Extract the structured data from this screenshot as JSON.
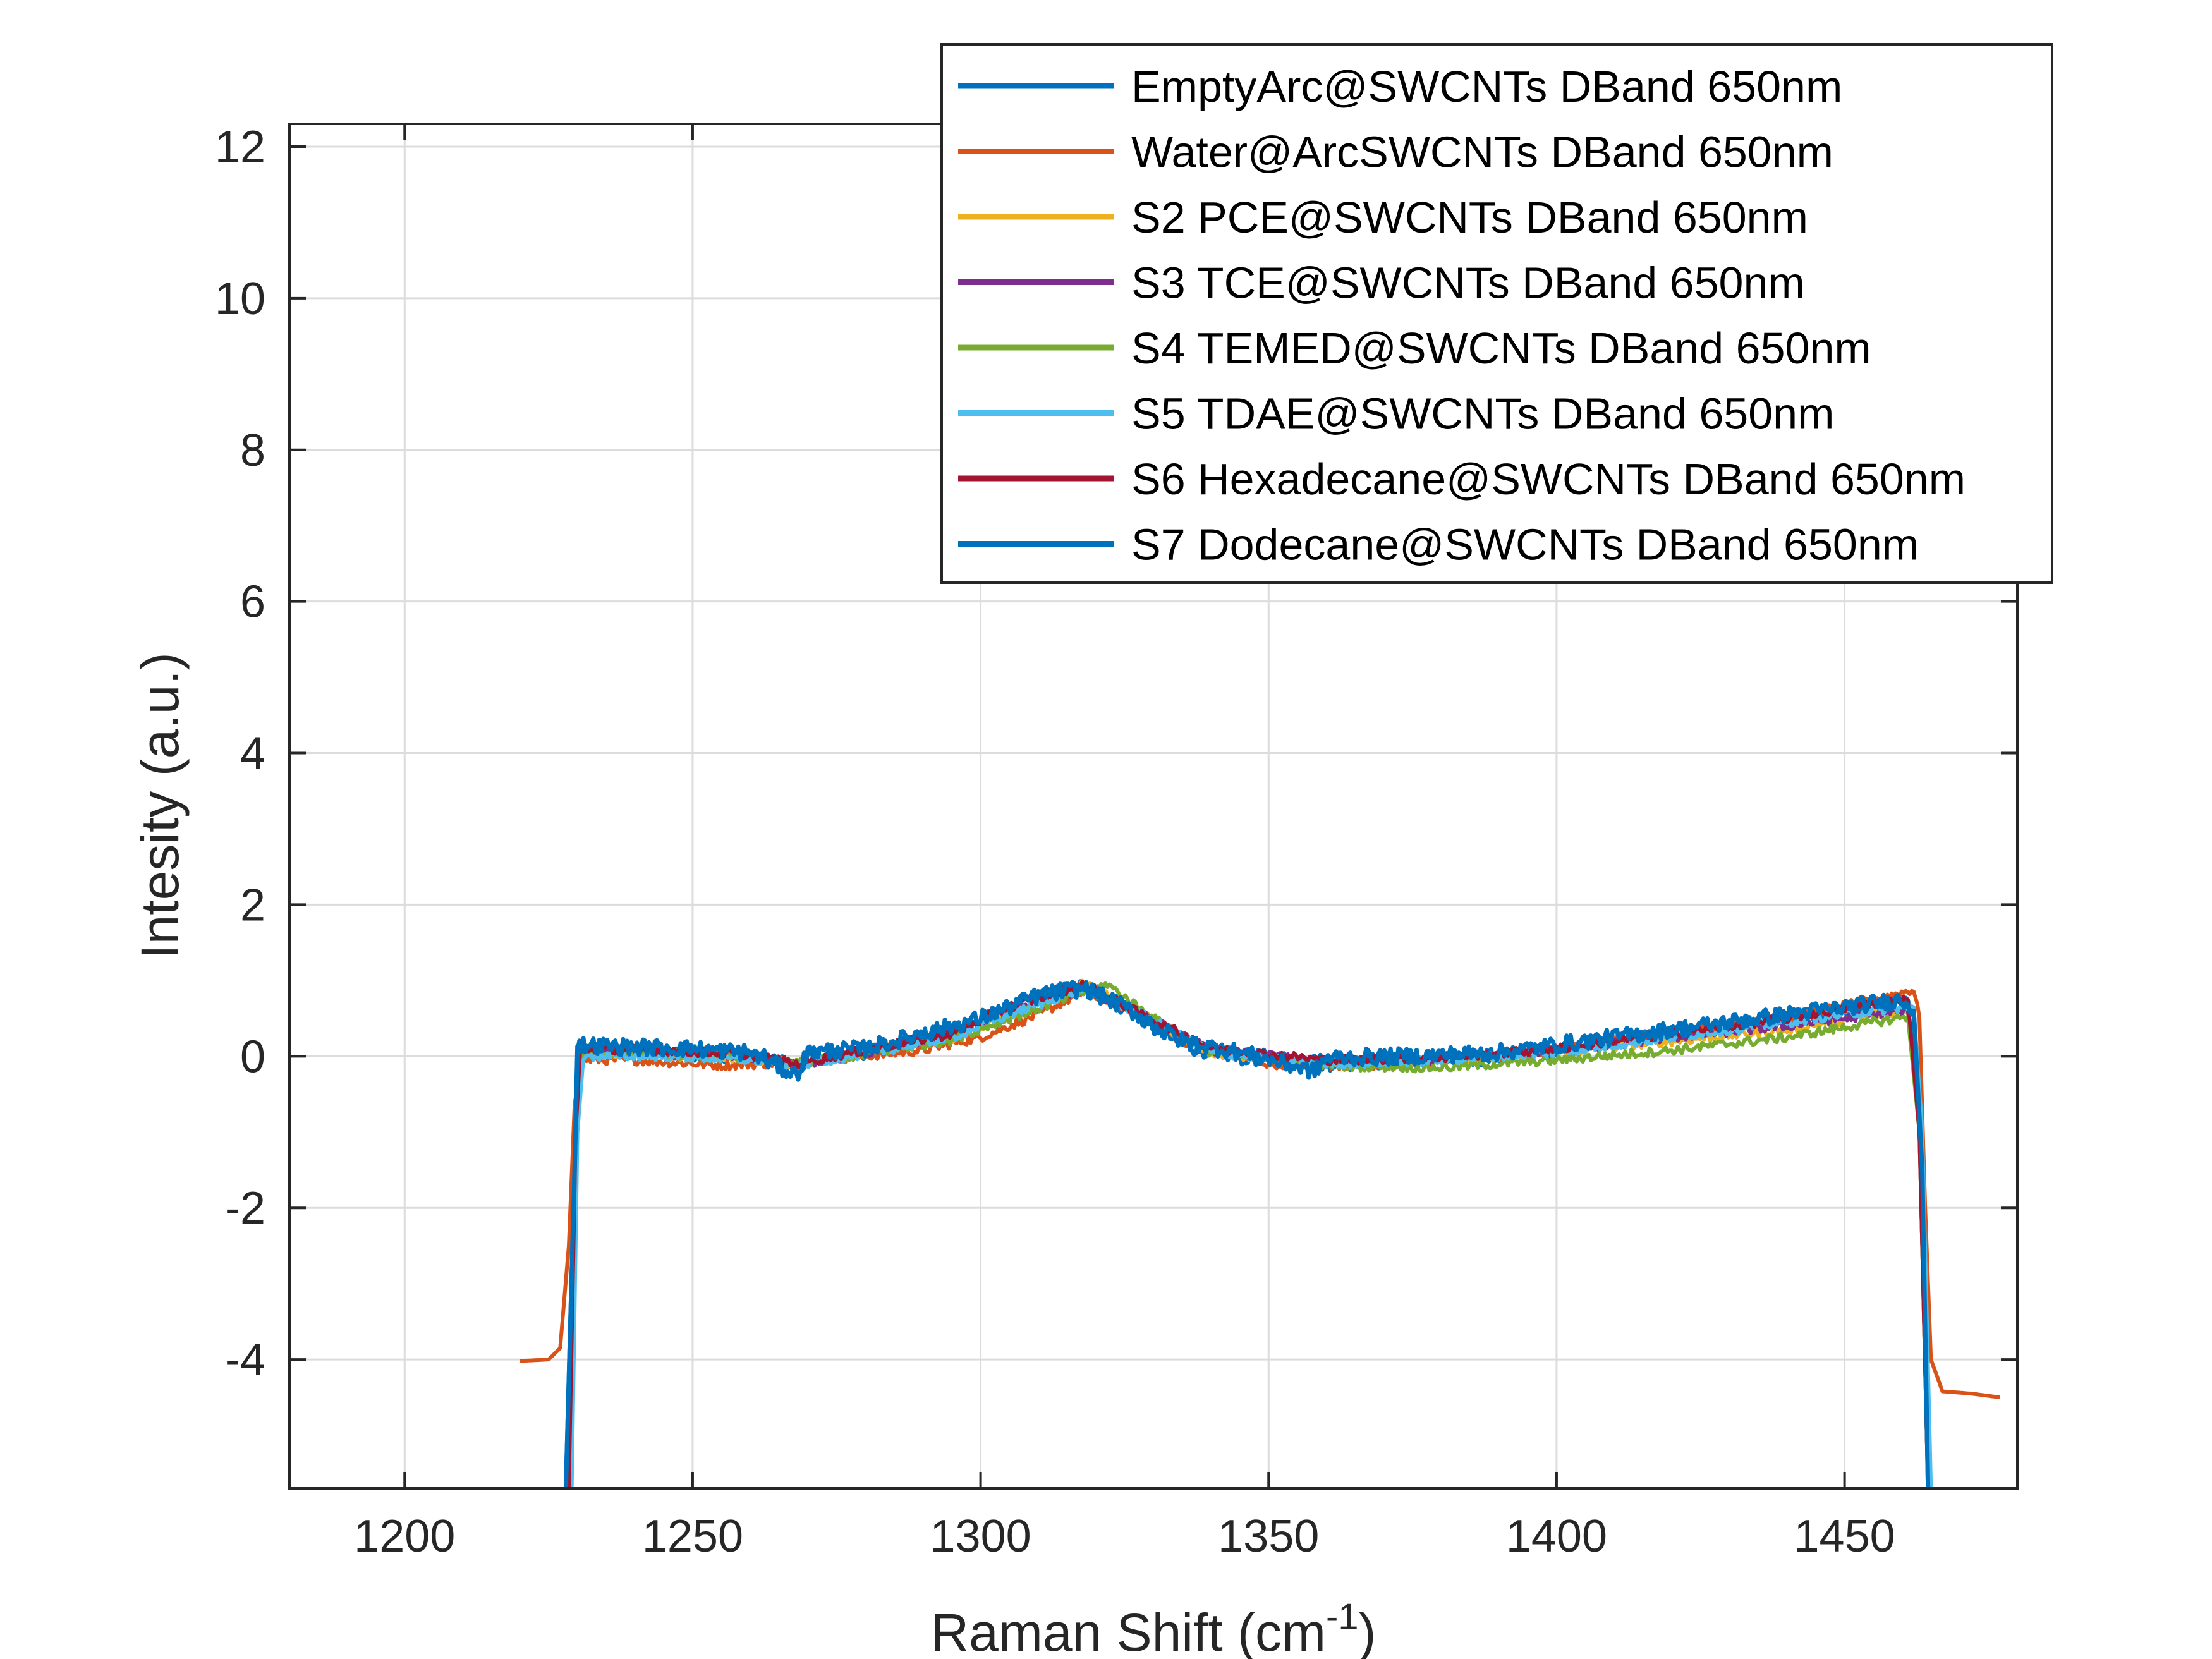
{
  "chart_data": {
    "type": "line",
    "title": "",
    "xlabel": "Raman Shift (cm",
    "xlabel_sup": "-1",
    "xlabel_suffix": ")",
    "ylabel": "Intesity (a.u.)",
    "xlim": [
      1180,
      1480
    ],
    "ylim": [
      -5.7,
      12.3
    ],
    "xticks": [
      1200,
      1250,
      1300,
      1350,
      1400,
      1450
    ],
    "xtick_labels": [
      "1200",
      "1250",
      "1300",
      "1350",
      "1400",
      "1450"
    ],
    "yticks": [
      -4,
      -2,
      0,
      2,
      4,
      6,
      8,
      10,
      12
    ],
    "ytick_labels": [
      "-4",
      "-2",
      "0",
      "2",
      "4",
      "6",
      "8",
      "10",
      "12"
    ],
    "grid": true,
    "legend_position": "top-right",
    "series": [
      {
        "name": "EmptyArc@SWCNTs DBand 650nm",
        "color": "#0072BD",
        "x": [
          1228,
          1229.5,
          1230,
          1240,
          1250,
          1260,
          1268,
          1270,
          1280,
          1290,
          1300,
          1310,
          1318,
          1325,
          1335,
          1345,
          1360,
          1375,
          1390,
          1400,
          1415,
          1430,
          1445,
          1455,
          1460,
          1462,
          1463.5,
          1464.5
        ],
        "y": [
          -5.7,
          -1.5,
          0.1,
          0.08,
          0.05,
          0.02,
          -0.15,
          0.0,
          0.05,
          0.25,
          0.45,
          0.8,
          0.92,
          0.65,
          0.15,
          0.0,
          -0.08,
          -0.05,
          0.0,
          0.1,
          0.25,
          0.4,
          0.55,
          0.65,
          0.7,
          0.6,
          -1.5,
          -5.7
        ]
      },
      {
        "name": "Water@ArcSWCNTs DBand 650nm",
        "color": "#D95319",
        "x": [
          1220,
          1225,
          1227,
          1228.5,
          1229.5,
          1230.5,
          1240,
          1255,
          1268,
          1280,
          1290,
          1300,
          1310,
          1318,
          1325,
          1335,
          1350,
          1370,
          1390,
          1400,
          1420,
          1440,
          1455,
          1462,
          1463,
          1464,
          1465,
          1467,
          1472,
          1477
        ],
        "y": [
          -4.02,
          -4.0,
          -3.85,
          -2.5,
          -0.6,
          -0.05,
          -0.05,
          -0.12,
          -0.08,
          0.0,
          0.08,
          0.25,
          0.55,
          0.85,
          0.65,
          0.2,
          -0.1,
          -0.12,
          0.0,
          0.1,
          0.3,
          0.5,
          0.75,
          0.88,
          0.5,
          -2.0,
          -4.0,
          -4.42,
          -4.45,
          -4.5
        ]
      },
      {
        "name": "S2 PCE@SWCNTs DBand 650nm",
        "color": "#EDB120",
        "x": [
          1228.5,
          1229.7,
          1230.5,
          1245,
          1260,
          1268,
          1280,
          1295,
          1305,
          1318,
          1328,
          1340,
          1360,
          1380,
          1400,
          1420,
          1440,
          1455,
          1461,
          1463,
          1464.5
        ],
        "y": [
          -5.7,
          -1.0,
          0.05,
          0.02,
          -0.03,
          -0.1,
          0.05,
          0.25,
          0.55,
          0.95,
          0.55,
          0.05,
          -0.1,
          -0.05,
          0.05,
          0.2,
          0.35,
          0.55,
          0.6,
          -1.0,
          -5.7
        ]
      },
      {
        "name": "S3 TCE@SWCNTs DBand 650nm",
        "color": "#7E2F8E",
        "x": [
          1228.5,
          1229.7,
          1230.5,
          1245,
          1260,
          1268,
          1280,
          1295,
          1305,
          1318,
          1328,
          1340,
          1360,
          1380,
          1400,
          1420,
          1440,
          1455,
          1461,
          1463,
          1464.5
        ],
        "y": [
          -5.7,
          -1.0,
          0.08,
          0.05,
          0.0,
          -0.12,
          0.05,
          0.28,
          0.6,
          0.9,
          0.55,
          0.08,
          -0.08,
          -0.05,
          0.08,
          0.25,
          0.4,
          0.55,
          0.6,
          -1.0,
          -5.7
        ]
      },
      {
        "name": "S4 TEMED@SWCNTs DBand 650nm",
        "color": "#77AC30",
        "x": [
          1228.5,
          1229.7,
          1230.5,
          1245,
          1260,
          1268,
          1280,
          1295,
          1305,
          1322,
          1330,
          1340,
          1360,
          1380,
          1400,
          1420,
          1440,
          1455,
          1461,
          1463,
          1464.5
        ],
        "y": [
          -5.7,
          -1.0,
          0.05,
          0.03,
          -0.02,
          -0.1,
          0.02,
          0.22,
          0.5,
          0.95,
          0.5,
          0.05,
          -0.12,
          -0.15,
          -0.05,
          0.08,
          0.25,
          0.45,
          0.52,
          -1.0,
          -5.7
        ]
      },
      {
        "name": "S5 TDAE@SWCNTs DBand 650nm",
        "color": "#4DBEEE",
        "x": [
          1229,
          1230,
          1231,
          1245,
          1260,
          1268,
          1280,
          1295,
          1305,
          1318,
          1328,
          1340,
          1360,
          1380,
          1400,
          1420,
          1440,
          1455,
          1462,
          1463.5,
          1465
        ],
        "y": [
          -5.7,
          -1.0,
          0.0,
          0.0,
          -0.05,
          -0.12,
          0.03,
          0.25,
          0.55,
          0.9,
          0.55,
          0.05,
          -0.1,
          -0.05,
          0.05,
          0.25,
          0.45,
          0.6,
          0.65,
          -1.0,
          -5.7
        ]
      },
      {
        "name": "S6 Hexadecane@SWCNTs DBand 650nm",
        "color": "#A2142F",
        "x": [
          1228.5,
          1229.7,
          1230.5,
          1245,
          1260,
          1268,
          1280,
          1295,
          1305,
          1318,
          1328,
          1340,
          1360,
          1380,
          1400,
          1420,
          1440,
          1455,
          1461,
          1463,
          1464.5
        ],
        "y": [
          -5.7,
          -1.0,
          0.1,
          0.08,
          0.02,
          -0.1,
          0.08,
          0.3,
          0.65,
          0.95,
          0.55,
          0.1,
          -0.05,
          -0.02,
          0.1,
          0.3,
          0.5,
          0.7,
          0.75,
          -1.0,
          -5.7
        ]
      },
      {
        "name": "S7 Dodecane@SWCNTs DBand 650nm",
        "color": "#0072BD",
        "x": [
          1228,
          1229.5,
          1230,
          1240,
          1250,
          1260,
          1268,
          1270,
          1280,
          1290,
          1300,
          1310,
          1318,
          1325,
          1335,
          1345,
          1358,
          1360,
          1375,
          1390,
          1400,
          1415,
          1430,
          1445,
          1455,
          1460,
          1462,
          1463.5,
          1464.5
        ],
        "y": [
          -5.7,
          -1.5,
          0.15,
          0.12,
          0.1,
          0.05,
          -0.25,
          0.05,
          0.1,
          0.3,
          0.5,
          0.8,
          0.9,
          0.65,
          0.2,
          0.05,
          -0.2,
          -0.02,
          0.0,
          0.05,
          0.15,
          0.3,
          0.45,
          0.6,
          0.7,
          0.75,
          0.6,
          -1.5,
          -5.7
        ]
      }
    ]
  }
}
